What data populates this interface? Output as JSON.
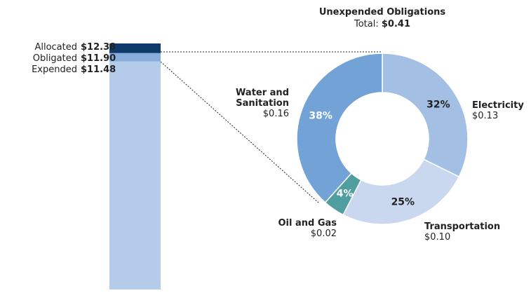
{
  "chart_data": [
    {
      "type": "bar",
      "categories": [
        "Allocated",
        "Obligated",
        "Expended"
      ],
      "values": [
        12.38,
        11.9,
        11.48
      ],
      "value_labels": [
        "$12.38",
        "$11.90",
        "$11.48"
      ],
      "colors": [
        "#0e3a6b",
        "#8aaedc",
        "#b5cbea"
      ]
    },
    {
      "type": "donut",
      "title": "Unexpended Obligations",
      "subtitle": "Total:",
      "total": "$0.41",
      "categories": [
        "Electricity",
        "Transportation",
        "Oil and Gas",
        "Water and Sanitation"
      ],
      "values": [
        32,
        25,
        4,
        38
      ],
      "value_labels": [
        "32%",
        "25%",
        "4%",
        "38%"
      ],
      "amounts": [
        "$0.13",
        "$0.10",
        "$0.02",
        "$0.16"
      ],
      "colors": [
        "#a3bfe4",
        "#c9d8ef",
        "#519ea1",
        "#72a2d6"
      ]
    }
  ]
}
